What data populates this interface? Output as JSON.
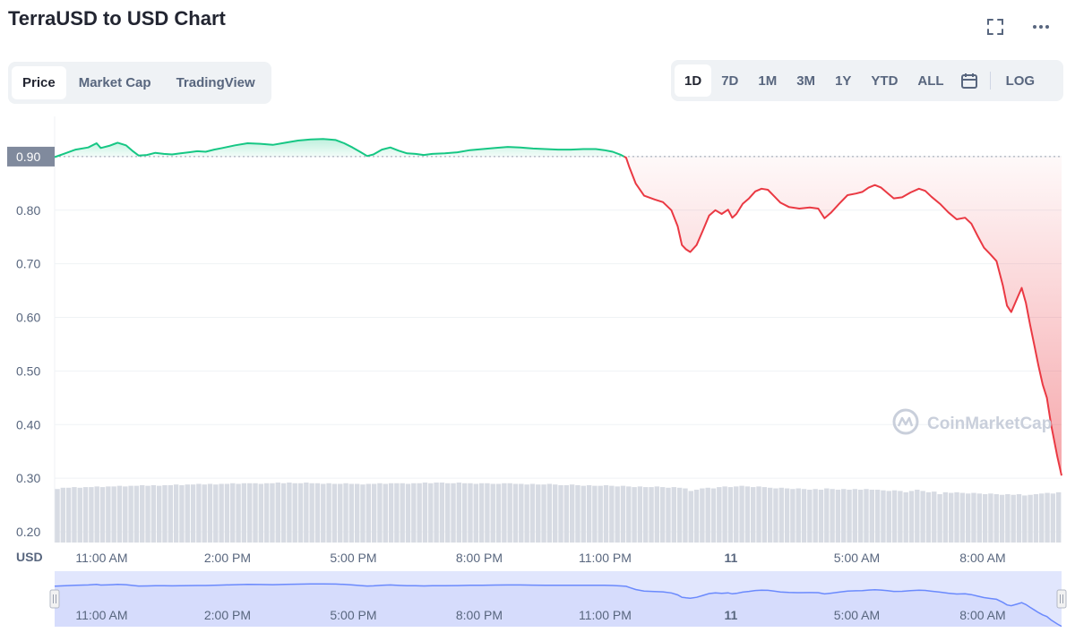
{
  "header": {
    "title": "TerraUSD to USD Chart",
    "fullscreen_icon": "expand-icon",
    "more_icon": "more-icon"
  },
  "view_tabs": [
    {
      "label": "Price",
      "active": true
    },
    {
      "label": "Market Cap",
      "active": false
    },
    {
      "label": "TradingView",
      "active": false
    }
  ],
  "ranges": [
    {
      "label": "1D",
      "active": true
    },
    {
      "label": "7D",
      "active": false
    },
    {
      "label": "1M",
      "active": false
    },
    {
      "label": "3M",
      "active": false
    },
    {
      "label": "1Y",
      "active": false
    },
    {
      "label": "YTD",
      "active": false
    },
    {
      "label": "ALL",
      "active": false
    }
  ],
  "calendar_icon": "calendar-icon",
  "log_label": "LOG",
  "currency_label": "USD",
  "watermark": "CoinMarketCap",
  "colors": {
    "up": "#16c784",
    "down": "#ea3943",
    "navigator": "#6b8afd",
    "reference_badge": "#808a9d"
  },
  "chart_data": {
    "type": "line",
    "ylim": [
      0.18,
      0.96
    ],
    "yticks": [
      "0.20",
      "0.30",
      "0.40",
      "0.50",
      "0.60",
      "0.70",
      "0.80",
      "0.90"
    ],
    "reference_value": 0.9,
    "reference_label": "0.90",
    "x_range": [
      0,
      24
    ],
    "xticks": [
      {
        "x": 1.12,
        "label": "11:00 AM"
      },
      {
        "x": 4.12,
        "label": "2:00 PM"
      },
      {
        "x": 7.12,
        "label": "5:00 PM"
      },
      {
        "x": 10.12,
        "label": "8:00 PM"
      },
      {
        "x": 13.12,
        "label": "11:00 PM"
      },
      {
        "x": 16.12,
        "label": "11"
      },
      {
        "x": 19.12,
        "label": "5:00 AM"
      },
      {
        "x": 22.12,
        "label": "8:00 AM"
      }
    ],
    "series": [
      {
        "points": [
          [
            0.0,
            0.899
          ],
          [
            0.25,
            0.906
          ],
          [
            0.5,
            0.913
          ],
          [
            0.8,
            0.917
          ],
          [
            1.0,
            0.925
          ],
          [
            1.1,
            0.916
          ],
          [
            1.3,
            0.92
          ],
          [
            1.5,
            0.926
          ],
          [
            1.7,
            0.921
          ],
          [
            1.85,
            0.911
          ],
          [
            2.0,
            0.902
          ],
          [
            2.2,
            0.903
          ],
          [
            2.4,
            0.907
          ],
          [
            2.6,
            0.905
          ],
          [
            2.8,
            0.904
          ],
          [
            3.0,
            0.906
          ],
          [
            3.2,
            0.908
          ],
          [
            3.4,
            0.91
          ],
          [
            3.6,
            0.909
          ],
          [
            3.8,
            0.913
          ],
          [
            4.0,
            0.916
          ],
          [
            4.3,
            0.921
          ],
          [
            4.6,
            0.925
          ],
          [
            4.9,
            0.924
          ],
          [
            5.2,
            0.922
          ],
          [
            5.5,
            0.926
          ],
          [
            5.8,
            0.93
          ],
          [
            6.1,
            0.932
          ],
          [
            6.4,
            0.933
          ],
          [
            6.7,
            0.931
          ],
          [
            6.9,
            0.925
          ],
          [
            7.1,
            0.917
          ],
          [
            7.3,
            0.908
          ],
          [
            7.45,
            0.901
          ],
          [
            7.6,
            0.904
          ],
          [
            7.8,
            0.913
          ],
          [
            8.0,
            0.917
          ],
          [
            8.2,
            0.911
          ],
          [
            8.4,
            0.906
          ],
          [
            8.6,
            0.905
          ],
          [
            8.8,
            0.903
          ],
          [
            9.0,
            0.905
          ],
          [
            9.3,
            0.906
          ],
          [
            9.6,
            0.908
          ],
          [
            9.9,
            0.912
          ],
          [
            10.2,
            0.914
          ],
          [
            10.5,
            0.916
          ],
          [
            10.8,
            0.918
          ],
          [
            11.1,
            0.917
          ],
          [
            11.4,
            0.915
          ],
          [
            11.7,
            0.914
          ],
          [
            12.0,
            0.913
          ],
          [
            12.3,
            0.913
          ],
          [
            12.6,
            0.914
          ],
          [
            12.9,
            0.914
          ],
          [
            13.1,
            0.912
          ],
          [
            13.3,
            0.909
          ],
          [
            13.5,
            0.903
          ],
          [
            13.62,
            0.898
          ],
          [
            13.7,
            0.88
          ],
          [
            13.85,
            0.85
          ],
          [
            14.05,
            0.827
          ],
          [
            14.3,
            0.82
          ],
          [
            14.5,
            0.815
          ],
          [
            14.7,
            0.8
          ],
          [
            14.85,
            0.77
          ],
          [
            14.95,
            0.735
          ],
          [
            15.05,
            0.727
          ],
          [
            15.15,
            0.722
          ],
          [
            15.3,
            0.735
          ],
          [
            15.45,
            0.762
          ],
          [
            15.6,
            0.79
          ],
          [
            15.75,
            0.8
          ],
          [
            15.9,
            0.793
          ],
          [
            16.05,
            0.801
          ],
          [
            16.15,
            0.786
          ],
          [
            16.25,
            0.793
          ],
          [
            16.4,
            0.812
          ],
          [
            16.55,
            0.822
          ],
          [
            16.7,
            0.835
          ],
          [
            16.85,
            0.84
          ],
          [
            17.0,
            0.838
          ],
          [
            17.15,
            0.826
          ],
          [
            17.3,
            0.814
          ],
          [
            17.5,
            0.806
          ],
          [
            17.75,
            0.803
          ],
          [
            18.0,
            0.805
          ],
          [
            18.2,
            0.803
          ],
          [
            18.35,
            0.785
          ],
          [
            18.5,
            0.795
          ],
          [
            18.7,
            0.812
          ],
          [
            18.9,
            0.828
          ],
          [
            19.1,
            0.831
          ],
          [
            19.25,
            0.834
          ],
          [
            19.4,
            0.842
          ],
          [
            19.55,
            0.847
          ],
          [
            19.7,
            0.842
          ],
          [
            19.85,
            0.832
          ],
          [
            20.0,
            0.822
          ],
          [
            20.2,
            0.824
          ],
          [
            20.4,
            0.833
          ],
          [
            20.6,
            0.84
          ],
          [
            20.75,
            0.836
          ],
          [
            20.9,
            0.825
          ],
          [
            21.1,
            0.812
          ],
          [
            21.3,
            0.796
          ],
          [
            21.5,
            0.783
          ],
          [
            21.7,
            0.786
          ],
          [
            21.85,
            0.775
          ],
          [
            22.0,
            0.752
          ],
          [
            22.15,
            0.73
          ],
          [
            22.3,
            0.718
          ],
          [
            22.45,
            0.705
          ],
          [
            22.6,
            0.66
          ],
          [
            22.7,
            0.622
          ],
          [
            22.8,
            0.61
          ],
          [
            22.95,
            0.637
          ],
          [
            23.05,
            0.655
          ],
          [
            23.15,
            0.627
          ],
          [
            23.25,
            0.586
          ],
          [
            23.35,
            0.548
          ],
          [
            23.45,
            0.51
          ],
          [
            23.55,
            0.475
          ],
          [
            23.65,
            0.45
          ],
          [
            23.75,
            0.4
          ],
          [
            23.9,
            0.34
          ],
          [
            24.0,
            0.305
          ]
        ]
      }
    ],
    "volume": {
      "values": [
        0.83,
        0.85,
        0.85,
        0.86,
        0.85,
        0.86,
        0.86,
        0.87,
        0.86,
        0.87,
        0.87,
        0.88,
        0.87,
        0.88,
        0.88,
        0.89,
        0.88,
        0.89,
        0.88,
        0.89,
        0.89,
        0.9,
        0.89,
        0.9,
        0.9,
        0.91,
        0.9,
        0.91,
        0.9,
        0.91,
        0.91,
        0.92,
        0.91,
        0.92,
        0.92,
        0.92,
        0.91,
        0.92,
        0.92,
        0.93,
        0.92,
        0.93,
        0.92,
        0.92,
        0.93,
        0.92,
        0.92,
        0.91,
        0.92,
        0.91,
        0.91,
        0.92,
        0.91,
        0.91,
        0.9,
        0.91,
        0.91,
        0.92,
        0.91,
        0.92,
        0.92,
        0.92,
        0.91,
        0.92,
        0.92,
        0.93,
        0.92,
        0.93,
        0.93,
        0.92,
        0.92,
        0.93,
        0.92,
        0.92,
        0.91,
        0.92,
        0.92,
        0.91,
        0.91,
        0.92,
        0.92,
        0.91,
        0.91,
        0.9,
        0.91,
        0.9,
        0.9,
        0.91,
        0.9,
        0.89,
        0.89,
        0.9,
        0.89,
        0.88,
        0.89,
        0.88,
        0.88,
        0.89,
        0.88,
        0.87,
        0.88,
        0.87,
        0.86,
        0.87,
        0.86,
        0.86,
        0.87,
        0.86,
        0.85,
        0.86,
        0.85,
        0.84,
        0.8,
        0.82,
        0.84,
        0.85,
        0.84,
        0.86,
        0.87,
        0.86,
        0.87,
        0.88,
        0.87,
        0.86,
        0.87,
        0.86,
        0.85,
        0.84,
        0.85,
        0.84,
        0.83,
        0.84,
        0.83,
        0.82,
        0.83,
        0.82,
        0.84,
        0.83,
        0.82,
        0.83,
        0.82,
        0.83,
        0.82,
        0.83,
        0.82,
        0.82,
        0.81,
        0.8,
        0.81,
        0.8,
        0.78,
        0.8,
        0.82,
        0.8,
        0.78,
        0.79,
        0.75,
        0.78,
        0.77,
        0.78,
        0.77,
        0.76,
        0.77,
        0.76,
        0.75,
        0.76,
        0.75,
        0.74,
        0.75,
        0.74,
        0.75,
        0.73,
        0.74,
        0.75,
        0.76,
        0.77,
        0.76,
        0.78
      ]
    },
    "navigator": {
      "xticks": [
        "11:00 AM",
        "2:00 PM",
        "5:00 PM",
        "8:00 PM",
        "11:00 PM",
        "11",
        "5:00 AM",
        "8:00 AM"
      ]
    }
  }
}
